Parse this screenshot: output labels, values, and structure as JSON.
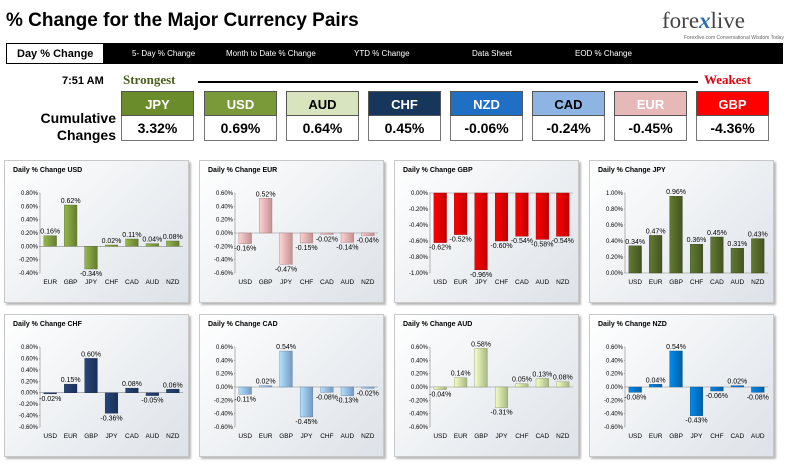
{
  "header": {
    "title": "% Change for the Major Currency Pairs",
    "logo": {
      "text_main": "fore",
      "text_x": "x",
      "text_end": "live",
      "tagline": "Forexlive.com Conversational Wisdom Today"
    }
  },
  "nav": {
    "items": [
      {
        "label": "Day % Change",
        "active": true
      },
      {
        "label": "5- Day % Change"
      },
      {
        "label": "Month to Date % Change"
      },
      {
        "label": "YTD % Change"
      },
      {
        "label": "Data Sheet"
      },
      {
        "label": "EOD % Change"
      }
    ]
  },
  "summary": {
    "time": "7:51 AM",
    "strongest_label": "Strongest",
    "weakest_label": "Weakest",
    "cumulative_label_1": "Cumulative",
    "cumulative_label_2": "Changes",
    "currencies": [
      {
        "code": "JPY",
        "value": "3.32%",
        "color": "#6b8c2a"
      },
      {
        "code": "USD",
        "value": "0.69%",
        "color": "#7a9a3a"
      },
      {
        "code": "AUD",
        "value": "0.64%",
        "color": "#d7e4bd",
        "text_color": "#000000"
      },
      {
        "code": "CHF",
        "value": "0.45%",
        "color": "#16365c"
      },
      {
        "code": "NZD",
        "value": "-0.06%",
        "color": "#1f6fc5"
      },
      {
        "code": "CAD",
        "value": "-0.24%",
        "color": "#8db4e2",
        "text_color": "#000000"
      },
      {
        "code": "EUR",
        "value": "-0.45%",
        "color": "#e6b8b7"
      },
      {
        "code": "GBP",
        "value": "-4.36%",
        "color": "#ff0000"
      }
    ]
  },
  "chart_data": [
    {
      "type": "bar",
      "title": "Daily % Change USD",
      "categories": [
        "EUR",
        "GBP",
        "JPY",
        "CHF",
        "CAD",
        "AUD",
        "NZD"
      ],
      "values": [
        0.16,
        0.62,
        -0.34,
        0.02,
        0.11,
        0.04,
        0.08
      ],
      "labels": [
        "0.16%",
        "0.62%",
        "-0.34%",
        "0.02%",
        "0.11%",
        "0.04%",
        "0.08%"
      ],
      "ylim": [
        -0.4,
        0.8
      ],
      "ticks": [
        "-0.40%",
        "-0.20%",
        "0.00%",
        "0.20%",
        "0.40%",
        "0.60%",
        "0.80%"
      ],
      "color": "#77933c"
    },
    {
      "type": "bar",
      "title": "Daily % Change EUR",
      "categories": [
        "USD",
        "GBP",
        "JPY",
        "CHF",
        "CAD",
        "AUD",
        "NZD"
      ],
      "values": [
        -0.16,
        0.52,
        -0.47,
        -0.15,
        -0.02,
        -0.14,
        -0.04
      ],
      "labels": [
        "-0.16%",
        "0.52%",
        "-0.47%",
        "-0.15%",
        "-0.02%",
        "-0.14%",
        "-0.04%"
      ],
      "ylim": [
        -0.6,
        0.6
      ],
      "ticks": [
        "-0.60%",
        "-0.40%",
        "-0.20%",
        "0.00%",
        "0.20%",
        "0.40%",
        "0.60%"
      ],
      "color": "#e6a9a9"
    },
    {
      "type": "bar",
      "title": "Daily % Change GBP",
      "categories": [
        "USD",
        "EUR",
        "JPY",
        "CHF",
        "CAD",
        "AUD",
        "NZD"
      ],
      "values": [
        -0.62,
        -0.52,
        -0.96,
        -0.6,
        -0.54,
        -0.58,
        -0.54
      ],
      "labels": [
        "-0.62%",
        "-0.52%",
        "-0.96%",
        "-0.60%",
        "-0.54%",
        "-0.58%",
        "-0.54%"
      ],
      "ylim": [
        -1.0,
        0.0
      ],
      "ticks": [
        "-1.00%",
        "-0.80%",
        "-0.60%",
        "-0.40%",
        "-0.20%",
        "0.00%"
      ],
      "color": "#e00000"
    },
    {
      "type": "bar",
      "title": "Daily % Change JPY",
      "categories": [
        "USD",
        "EUR",
        "GBP",
        "CHF",
        "CAD",
        "AUD",
        "NZD"
      ],
      "values": [
        0.34,
        0.47,
        0.96,
        0.36,
        0.45,
        0.31,
        0.43
      ],
      "labels": [
        "0.34%",
        "0.47%",
        "0.96%",
        "0.36%",
        "0.45%",
        "0.31%",
        "0.43%"
      ],
      "ylim": [
        0.0,
        1.0
      ],
      "ticks": [
        "0.00%",
        "0.20%",
        "0.40%",
        "0.60%",
        "0.80%",
        "1.00%"
      ],
      "color": "#4f6228"
    },
    {
      "type": "bar",
      "title": "Daily % Change CHF",
      "categories": [
        "USD",
        "EUR",
        "GBP",
        "JPY",
        "CAD",
        "AUD",
        "NZD"
      ],
      "values": [
        -0.02,
        0.15,
        0.6,
        -0.36,
        0.08,
        -0.05,
        0.06
      ],
      "labels": [
        "-0.02%",
        "0.15%",
        "0.60%",
        "-0.36%",
        "0.08%",
        "-0.05%",
        "0.06%"
      ],
      "ylim": [
        -0.6,
        0.8
      ],
      "ticks": [
        "-0.60%",
        "-0.40%",
        "-0.20%",
        "0.00%",
        "0.20%",
        "0.40%",
        "0.60%",
        "0.80%"
      ],
      "color": "#1f3864"
    },
    {
      "type": "bar",
      "title": "Daily % Change CAD",
      "categories": [
        "USD",
        "EUR",
        "GBP",
        "JPY",
        "CHF",
        "AUD",
        "NZD"
      ],
      "values": [
        -0.11,
        0.02,
        0.54,
        -0.45,
        -0.08,
        -0.13,
        -0.02
      ],
      "labels": [
        "-0.11%",
        "0.02%",
        "0.54%",
        "-0.45%",
        "-0.08%",
        "-0.13%",
        "-0.02%"
      ],
      "ylim": [
        -0.6,
        0.6
      ],
      "ticks": [
        "-0.60%",
        "-0.40%",
        "-0.20%",
        "0.00%",
        "0.20%",
        "0.40%",
        "0.60%"
      ],
      "color": "#8db4e2"
    },
    {
      "type": "bar",
      "title": "Daily % Change AUD",
      "categories": [
        "USD",
        "EUR",
        "GBP",
        "JPY",
        "CHF",
        "CAD",
        "NZD"
      ],
      "values": [
        -0.04,
        0.14,
        0.58,
        -0.31,
        0.05,
        0.13,
        0.08
      ],
      "labels": [
        "-0.04%",
        "0.14%",
        "0.58%",
        "-0.31%",
        "0.05%",
        "0.13%",
        "0.08%"
      ],
      "ylim": [
        -0.6,
        0.6
      ],
      "ticks": [
        "-0.60%",
        "-0.40%",
        "-0.20%",
        "0.00%",
        "0.20%",
        "0.40%",
        "0.60%"
      ],
      "color": "#c4d79b"
    },
    {
      "type": "bar",
      "title": "Daily % Change NZD",
      "categories": [
        "USD",
        "EUR",
        "GBP",
        "JPY",
        "CHF",
        "CAD",
        "AUD"
      ],
      "values": [
        -0.08,
        0.04,
        0.54,
        -0.43,
        -0.06,
        0.02,
        -0.08
      ],
      "labels": [
        "-0.08%",
        "0.04%",
        "0.54%",
        "-0.43%",
        "-0.06%",
        "0.02%",
        "-0.08%"
      ],
      "ylim": [
        -0.6,
        0.6
      ],
      "ticks": [
        "-0.60%",
        "-0.40%",
        "-0.20%",
        "0.00%",
        "0.20%",
        "0.40%",
        "0.60%"
      ],
      "color": "#0070c0"
    }
  ]
}
